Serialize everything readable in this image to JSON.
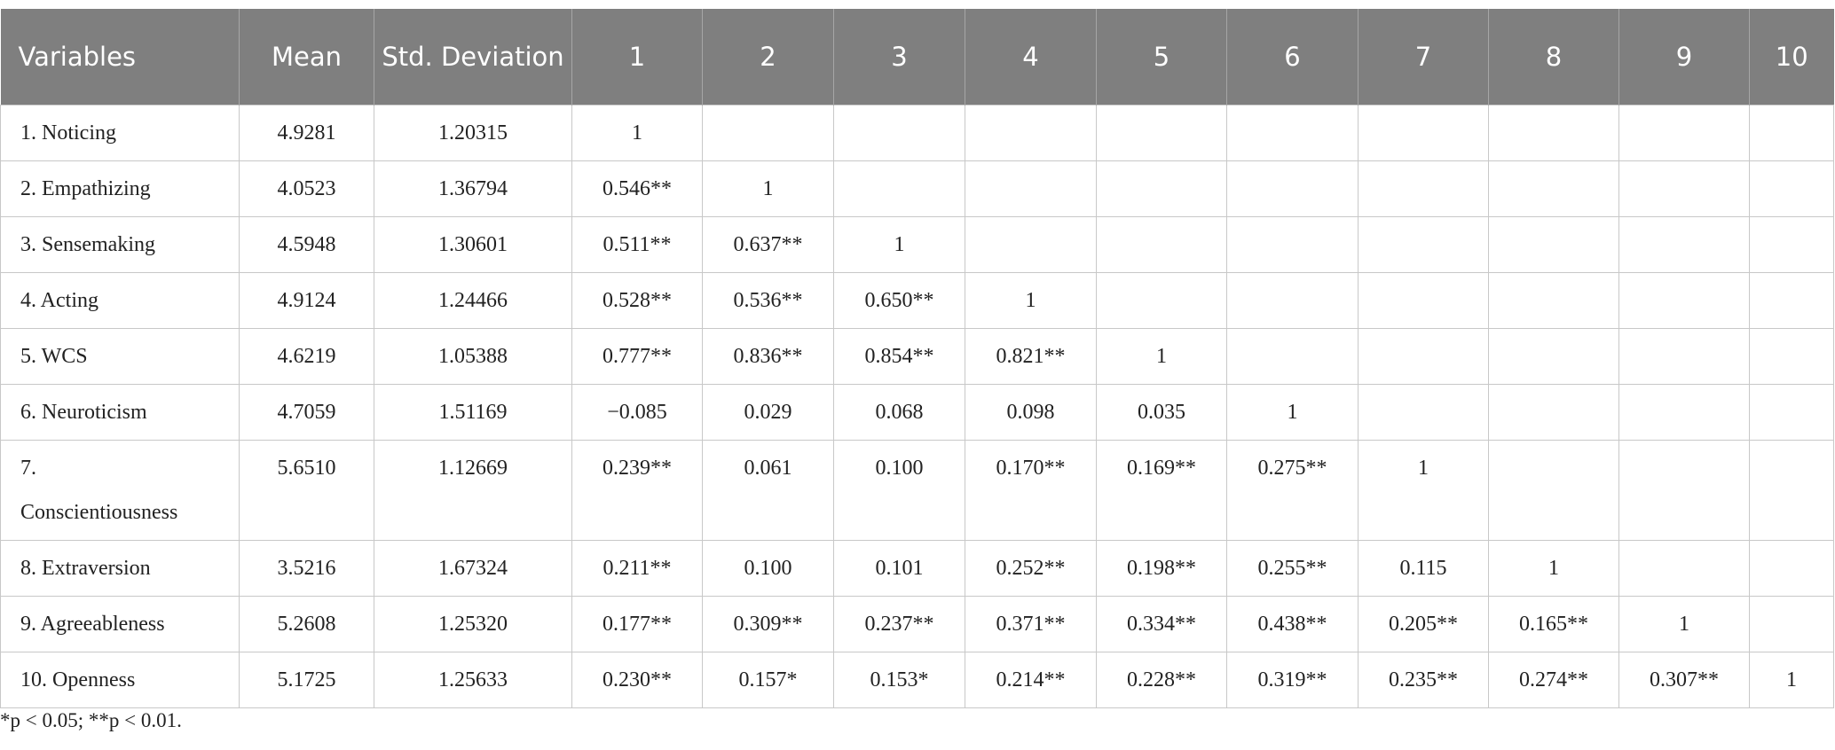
{
  "table": {
    "header": [
      "Variables",
      "Mean",
      "Std. Deviation",
      "1",
      "2",
      "3",
      "4",
      "5",
      "6",
      "7",
      "8",
      "9",
      "10"
    ],
    "rows": [
      [
        "1. Noticing",
        "4.9281",
        "1.20315",
        "1"
      ],
      [
        "2. Empathizing",
        "4.0523",
        "1.36794",
        "0.546**",
        "1"
      ],
      [
        "3. Sensemaking",
        "4.5948",
        "1.30601",
        "0.511**",
        "0.637**",
        "1"
      ],
      [
        "4. Acting",
        "4.9124",
        "1.24466",
        "0.528**",
        "0.536**",
        "0.650**",
        "1"
      ],
      [
        "5. WCS",
        "4.6219",
        "1.05388",
        "0.777**",
        "0.836**",
        "0.854**",
        "0.821**",
        "1"
      ],
      [
        "6. Neuroticism",
        "4.7059",
        "1.51169",
        "−0.085",
        "0.029",
        "0.068",
        "0.098",
        "0.035",
        "1"
      ],
      [
        "7. Conscientiousness",
        "5.6510",
        "1.12669",
        "0.239**",
        "0.061",
        "0.100",
        "0.170**",
        "0.169**",
        "0.275**",
        "1"
      ],
      [
        "8. Extraversion",
        "3.5216",
        "1.67324",
        "0.211**",
        "0.100",
        "0.101",
        "0.252**",
        "0.198**",
        "0.255**",
        "0.115",
        "1"
      ],
      [
        "9. Agreeableness",
        "5.2608",
        "1.25320",
        "0.177**",
        "0.309**",
        "0.237**",
        "0.371**",
        "0.334**",
        "0.438**",
        "0.205**",
        "0.165**",
        "1"
      ],
      [
        "10. Openness",
        "5.1725",
        "1.25633",
        "0.230**",
        "0.157*",
        "0.153*",
        "0.214**",
        "0.228**",
        "0.319**",
        "0.235**",
        "0.274**",
        "0.307**",
        "1"
      ]
    ],
    "footnote": "*p < 0.05; **p < 0.01."
  }
}
